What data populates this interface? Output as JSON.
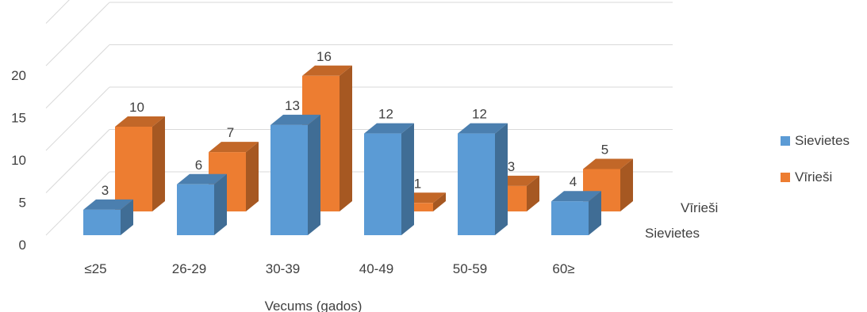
{
  "chart_data": {
    "type": "bar",
    "subtype": "3d-clustered-column",
    "title": "",
    "xlabel": "Vecums (gados)",
    "ylabel": "",
    "ylim": [
      0,
      20
    ],
    "yticks": [
      "0",
      "5",
      "10",
      "15",
      "20"
    ],
    "categories": [
      "≤25",
      "26-29",
      "30-39",
      "40-49",
      "50-59",
      "60≥"
    ],
    "series": [
      {
        "name": "Sievietes",
        "values": [
          3,
          6,
          13,
          12,
          12,
          4
        ],
        "color": "#5B9BD5"
      },
      {
        "name": "Vīrieši",
        "values": [
          10,
          7,
          16,
          1,
          3,
          5
        ],
        "color": "#ED7D31"
      }
    ],
    "depth_axis_labels": [
      "Vīrieši",
      "Sievietes"
    ],
    "legend_position": "right",
    "grid": true
  }
}
